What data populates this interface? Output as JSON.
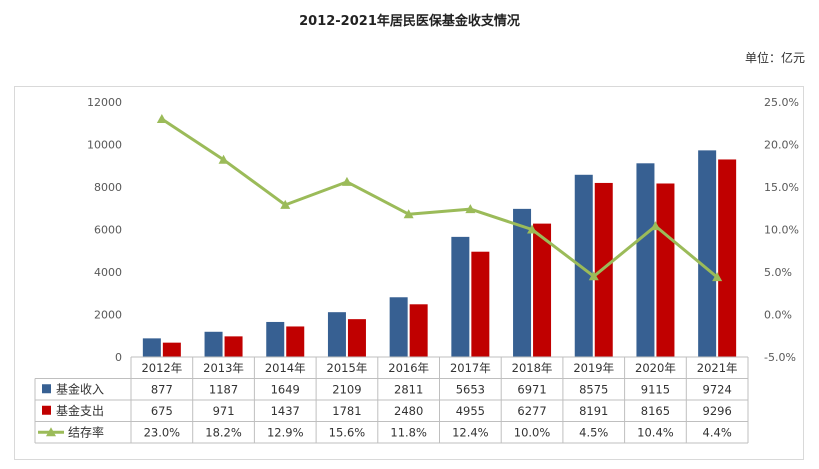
{
  "title": "2012-2021年居民医保基金收支情况",
  "unit_label": "单位：亿元",
  "chart_data": {
    "type": "bar",
    "title": "2012-2021年居民医保基金收支情况",
    "unit": "单位：亿元",
    "categories": [
      "2012年",
      "2013年",
      "2014年",
      "2015年",
      "2016年",
      "2017年",
      "2018年",
      "2019年",
      "2020年",
      "2021年"
    ],
    "series": [
      {
        "name": "基金收入",
        "type": "bar",
        "axis": "left",
        "color": "#376092",
        "values": [
          877,
          1187,
          1649,
          2109,
          2811,
          5653,
          6971,
          8575,
          9115,
          9724
        ],
        "labels": [
          "877",
          "1187",
          "1649",
          "2109",
          "2811",
          "5653",
          "6971",
          "8575",
          "9115",
          "9724"
        ]
      },
      {
        "name": "基金支出",
        "type": "bar",
        "axis": "left",
        "color": "#C00000",
        "values": [
          675,
          971,
          1437,
          1781,
          2480,
          4955,
          6277,
          8191,
          8165,
          9296
        ],
        "labels": [
          "675",
          "971",
          "1437",
          "1781",
          "2480",
          "4955",
          "6277",
          "8191",
          "8165",
          "9296"
        ]
      },
      {
        "name": "结存率",
        "type": "line",
        "axis": "right",
        "color": "#9BBB59",
        "values": [
          23.0,
          18.2,
          12.9,
          15.6,
          11.8,
          12.4,
          10.0,
          4.5,
          10.4,
          4.4
        ],
        "labels": [
          "23.0%",
          "18.2%",
          "12.9%",
          "15.6%",
          "11.8%",
          "12.4%",
          "10.0%",
          "4.5%",
          "10.4%",
          "4.4%"
        ]
      }
    ],
    "y_left": {
      "min": 0,
      "max": 12000,
      "ticks": [
        "0",
        "2000",
        "4000",
        "6000",
        "8000",
        "10000",
        "12000"
      ]
    },
    "y_right": {
      "min": -5,
      "max": 25,
      "ticks": [
        "-5.0%",
        "0.0%",
        "5.0%",
        "10.0%",
        "15.0%",
        "20.0%",
        "25.0%"
      ]
    },
    "grid": false,
    "legend": "data-table"
  }
}
